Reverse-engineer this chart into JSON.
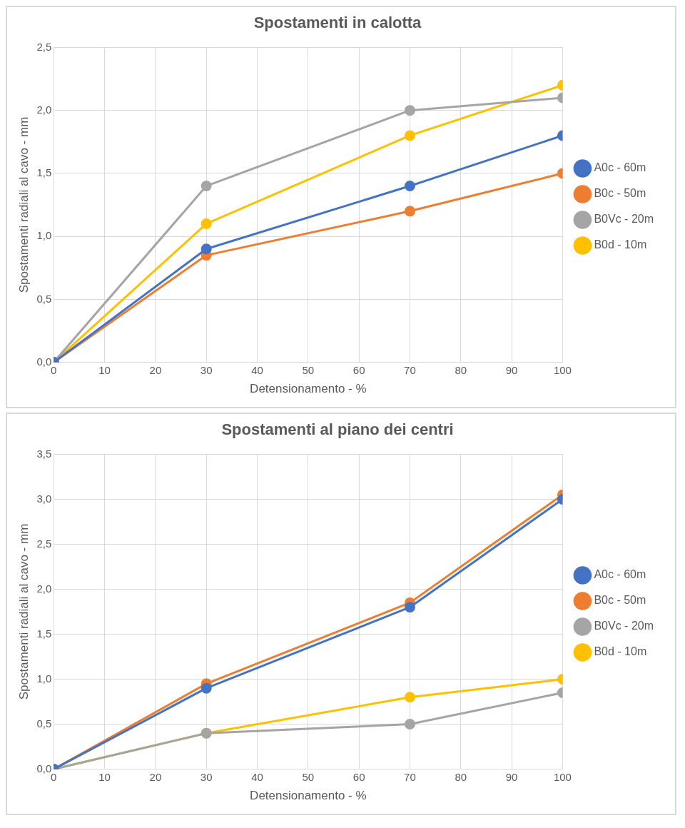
{
  "chart_data": [
    {
      "type": "line",
      "title": "Spostamenti in calotta",
      "xlabel": "Detensionamento - %",
      "ylabel": "Spostamenti radiali al cavo - mm",
      "x": [
        0,
        30,
        70,
        100
      ],
      "xlim": [
        0,
        100
      ],
      "xticks": [
        0,
        10,
        20,
        30,
        40,
        50,
        60,
        70,
        80,
        90,
        100
      ],
      "ylim": [
        0,
        2.5
      ],
      "yticks": [
        {
          "value": 0,
          "label": "0,0"
        },
        {
          "value": 0.5,
          "label": "0,5"
        },
        {
          "value": 1,
          "label": "1,0"
        },
        {
          "value": 1.5,
          "label": "1,5"
        },
        {
          "value": 2,
          "label": "2,0"
        },
        {
          "value": 2.5,
          "label": "2,5"
        }
      ],
      "grid": true,
      "legend": "right",
      "marker": "circle",
      "line_style": "solid",
      "series": [
        {
          "name": "A0c - 60m",
          "color": "#4472c4",
          "values": [
            0,
            0.9,
            1.4,
            1.8
          ]
        },
        {
          "name": "B0c - 50m",
          "color": "#ed7d31",
          "values": [
            0,
            0.85,
            1.2,
            1.5
          ]
        },
        {
          "name": "B0Vc - 20m",
          "color": "#a5a5a5",
          "values": [
            0,
            1.4,
            2.0,
            2.1
          ]
        },
        {
          "name": "B0d - 10m",
          "color": "#ffc000",
          "values": [
            0,
            1.1,
            1.8,
            2.2
          ]
        }
      ]
    },
    {
      "type": "line",
      "title": "Spostamenti al piano dei centri",
      "xlabel": "Detensionamento - %",
      "ylabel": "Spostamenti radiali al cavo - mm",
      "x": [
        0,
        30,
        70,
        100
      ],
      "xlim": [
        0,
        100
      ],
      "xticks": [
        0,
        10,
        20,
        30,
        40,
        50,
        60,
        70,
        80,
        90,
        100
      ],
      "ylim": [
        0,
        3.5
      ],
      "yticks": [
        {
          "value": 0,
          "label": "0,0"
        },
        {
          "value": 0.5,
          "label": "0,5"
        },
        {
          "value": 1,
          "label": "1,0"
        },
        {
          "value": 1.5,
          "label": "1,5"
        },
        {
          "value": 2,
          "label": "2,0"
        },
        {
          "value": 2.5,
          "label": "2,5"
        },
        {
          "value": 3,
          "label": "3,0"
        },
        {
          "value": 3.5,
          "label": "3,5"
        }
      ],
      "grid": true,
      "legend": "right",
      "marker": "circle",
      "line_style": "solid",
      "series": [
        {
          "name": "A0c - 60m",
          "color": "#4472c4",
          "values": [
            0,
            0.9,
            1.8,
            3.0
          ]
        },
        {
          "name": "B0c - 50m",
          "color": "#ed7d31",
          "values": [
            0,
            0.95,
            1.85,
            3.05
          ]
        },
        {
          "name": "B0Vc - 20m",
          "color": "#a5a5a5",
          "values": [
            0,
            0.4,
            0.5,
            0.85
          ]
        },
        {
          "name": "B0d - 10m",
          "color": "#ffc000",
          "values": [
            0,
            0.4,
            0.8,
            1.0
          ]
        }
      ]
    }
  ]
}
